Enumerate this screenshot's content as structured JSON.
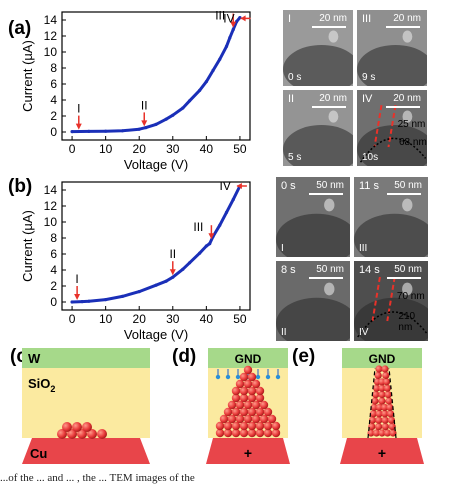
{
  "panels": {
    "a": "(a)",
    "b": "(b)",
    "c": "(c)",
    "d": "(d)",
    "e": "(e)"
  },
  "chart_data": [
    {
      "type": "line",
      "panel": "(a)",
      "xlabel": "Voltage (V)",
      "ylabel": "Current (µA)",
      "xlim": [
        -3,
        53
      ],
      "ylim": [
        -1,
        15
      ],
      "xticks": [
        "0",
        "10",
        "20",
        "30",
        "40",
        "50"
      ],
      "yticks": [
        "0",
        "2",
        "4",
        "6",
        "8",
        "10",
        "12",
        "14"
      ],
      "series": [
        {
          "x": [
            0,
            5,
            10,
            15,
            20,
            22,
            25,
            28,
            30,
            33,
            35,
            38,
            40,
            42,
            44,
            46,
            47,
            48,
            49,
            50
          ],
          "values": [
            0.05,
            0.08,
            0.1,
            0.15,
            0.35,
            0.55,
            0.95,
            1.6,
            2.1,
            3.0,
            3.9,
            5.2,
            6.3,
            7.7,
            9.1,
            10.7,
            11.8,
            12.8,
            13.8,
            14.3
          ]
        }
      ],
      "annotations": [
        {
          "label": "I",
          "x": 2,
          "y": 0.05
        },
        {
          "label": "II",
          "x": 21.5,
          "y": 0.45
        },
        {
          "label": "III",
          "x": 48,
          "y": 12.8
        },
        {
          "label": "IV",
          "x": 49.6,
          "y": 14.2
        }
      ]
    },
    {
      "type": "line",
      "panel": "(b)",
      "xlabel": "Voltage (V)",
      "ylabel": "Current (µA)",
      "xlim": [
        -3,
        53
      ],
      "ylim": [
        -1,
        15
      ],
      "xticks": [
        "0",
        "10",
        "20",
        "30",
        "40",
        "50"
      ],
      "yticks": [
        "0",
        "2",
        "4",
        "6",
        "8",
        "10",
        "12",
        "14"
      ],
      "series": [
        {
          "x": [
            0,
            3,
            5,
            10,
            15,
            20,
            25,
            28,
            30,
            33,
            35,
            38,
            40,
            41,
            42,
            44,
            46,
            48,
            50
          ],
          "values": [
            0.0,
            0.05,
            0.1,
            0.3,
            0.7,
            1.3,
            2.1,
            2.6,
            3.1,
            4.1,
            4.9,
            6.1,
            7.0,
            7.3,
            8.2,
            9.6,
            11.2,
            12.8,
            14.5
          ]
        }
      ],
      "annotations": [
        {
          "label": "I",
          "x": 1.5,
          "y": 0.0
        },
        {
          "label": "II",
          "x": 30,
          "y": 3.1
        },
        {
          "label": "III",
          "x": 41.5,
          "y": 7.6
        },
        {
          "label": "IV",
          "x": 48.5,
          "y": 14.5
        }
      ]
    }
  ],
  "tem_a": [
    {
      "tl": "I",
      "tr": "20 nm",
      "bl": "0 s"
    },
    {
      "tl": "III",
      "tr": "20 nm",
      "bl": "9 s"
    },
    {
      "tl": "II",
      "tr": "20 nm",
      "bl": "5 s"
    },
    {
      "tl": "IV",
      "tr": "20 nm",
      "bl": "10s",
      "m1": "25 nm",
      "m2": "68 nm"
    }
  ],
  "tem_b": [
    {
      "tl": "0 s",
      "tr": "50 nm",
      "bl": "I"
    },
    {
      "tl": "11 s",
      "tr": "50 nm",
      "bl": "III"
    },
    {
      "tl": "8 s",
      "tr": "50 nm",
      "bl": "II"
    },
    {
      "tl": "14 s",
      "tr": "50 nm",
      "bl": "IV",
      "m1": "70 nm",
      "m2": "210 nm"
    }
  ],
  "schematic": {
    "c_top": "W",
    "c_mid": "SiO",
    "c_mid_sub": "2",
    "c_bottom": "Cu",
    "d_top": "GND",
    "d_bottom": "+",
    "e_top": "GND",
    "e_bottom": "+"
  },
  "colors": {
    "curve": "#1a2fb8",
    "arrow": "#e8322a",
    "electrode_top": "#a6d98a",
    "oxide": "#fbeaa0",
    "electrode_bottom": "#e8454a",
    "particle": "#e83a3a"
  },
  "caption": "...of the ... and ... , the ... TEM images of the"
}
